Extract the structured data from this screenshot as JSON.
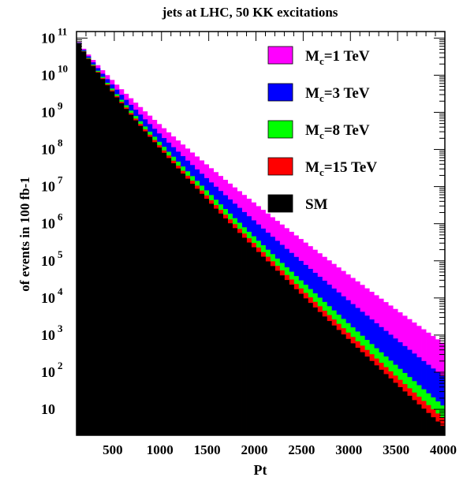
{
  "chart_data": {
    "type": "area",
    "title": "jets at LHC, 50 KK excitations",
    "xlabel": "Pt",
    "ylabel": "of events in 100 fb-1",
    "xlim": [
      100,
      4000
    ],
    "ylim": [
      2,
      150000000000
    ],
    "yscale": "log",
    "bin_width": 50,
    "x_ticks": [
      500,
      1000,
      1500,
      2000,
      2500,
      3000,
      3500,
      4000
    ],
    "y_ticks": [
      {
        "value": 10,
        "base": "10",
        "exp": ""
      },
      {
        "value": 100,
        "base": "10",
        "exp": "2"
      },
      {
        "value": 1000,
        "base": "10",
        "exp": "3"
      },
      {
        "value": 10000,
        "base": "10",
        "exp": "4"
      },
      {
        "value": 100000,
        "base": "10",
        "exp": "5"
      },
      {
        "value": 1000000,
        "base": "10",
        "exp": "6"
      },
      {
        "value": 10000000,
        "base": "10",
        "exp": "7"
      },
      {
        "value": 100000000,
        "base": "10",
        "exp": "8"
      },
      {
        "value": 1000000000,
        "base": "10",
        "exp": "9"
      },
      {
        "value": 10000000000,
        "base": "10",
        "exp": "10"
      },
      {
        "value": 100000000000,
        "base": "10",
        "exp": "11"
      }
    ],
    "legend_position": "top-right",
    "series": [
      {
        "name": "Mc=1 TeV",
        "label_main": "M",
        "label_sub": "c",
        "label_rest": "=1 TeV",
        "color": "#ff00ff",
        "top_at_first_bin_log10": 11.0,
        "top_at_last_bin_log10": 2.75
      },
      {
        "name": "Mc=3 TeV",
        "label_main": "M",
        "label_sub": "c",
        "label_rest": "=3 TeV",
        "color": "#0000ff",
        "top_at_first_bin_log10": 11.0,
        "top_at_last_bin_log10": 1.85
      },
      {
        "name": "Mc=8 TeV",
        "label_main": "M",
        "label_sub": "c",
        "label_rest": "=8 TeV",
        "color": "#00ff00",
        "top_at_first_bin_log10": 11.0,
        "top_at_last_bin_log10": 1.05
      },
      {
        "name": "Mc=15 TeV",
        "label_main": "M",
        "label_sub": "c",
        "label_rest": "=15 TeV",
        "color": "#ff0000",
        "top_at_first_bin_log10": 11.0,
        "top_at_last_bin_log10": 0.72
      },
      {
        "name": "SM",
        "label_main": "SM",
        "label_sub": "",
        "label_rest": "",
        "color": "#000000",
        "top_at_first_bin_log10": 11.0,
        "top_at_last_bin_log10": 0.5
      }
    ]
  }
}
